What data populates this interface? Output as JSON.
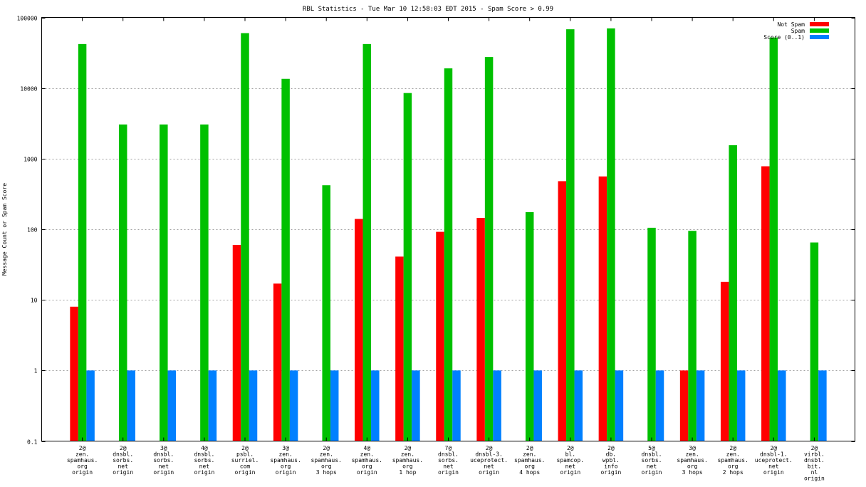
{
  "chart_data": {
    "type": "bar",
    "title": "RBL Statistics - Tue Mar 10 12:58:03 EDT 2015 - Spam Score > 0.99",
    "xlabel": "",
    "ylabel": "Message Count or Spam Score",
    "yscale": "log",
    "ylim": [
      0.1,
      100000
    ],
    "yticks": [
      0.1,
      1,
      10,
      100,
      1000,
      10000,
      100000
    ],
    "ytick_labels": [
      "0.1",
      "1",
      "10",
      "100",
      "1000",
      "10000",
      "100000"
    ],
    "grid": true,
    "legend_position": "top-right",
    "categories": [
      [
        "2@",
        "zen.",
        "spamhaus.",
        "org",
        "origin"
      ],
      [
        "2@",
        "dnsbl.",
        "sorbs.",
        "net",
        "origin"
      ],
      [
        "3@",
        "dnsbl.",
        "sorbs.",
        "net",
        "origin"
      ],
      [
        "4@",
        "dnsbl.",
        "sorbs.",
        "net",
        "origin"
      ],
      [
        "2@",
        "psbl.",
        "surriel.",
        "com",
        "origin"
      ],
      [
        "3@",
        "zen.",
        "spamhaus.",
        "org",
        "origin"
      ],
      [
        "2@",
        "zen.",
        "spamhaus.",
        "org",
        "3 hops"
      ],
      [
        "4@",
        "zen.",
        "spamhaus.",
        "org",
        "origin"
      ],
      [
        "2@",
        "zen.",
        "spamhaus.",
        "org",
        "1 hop"
      ],
      [
        "7@",
        "dnsbl.",
        "sorbs.",
        "net",
        "origin"
      ],
      [
        "2@",
        "dnsbl-3.",
        "uceprotect.",
        "net",
        "origin"
      ],
      [
        "2@",
        "zen.",
        "spamhaus.",
        "org",
        "4 hops"
      ],
      [
        "2@",
        "bl.",
        "spamcop.",
        "net",
        "origin"
      ],
      [
        "2@",
        "db.",
        "wpbl.",
        "info",
        "origin"
      ],
      [
        "5@",
        "dnsbl.",
        "sorbs.",
        "net",
        "origin"
      ],
      [
        "3@",
        "zen.",
        "spamhaus.",
        "org",
        "3 hops"
      ],
      [
        "2@",
        "zen.",
        "spamhaus.",
        "org",
        "2 hops"
      ],
      [
        "2@",
        "dnsbl-1.",
        "uceprotect.",
        "net",
        "origin"
      ],
      [
        "2@",
        "virbl.",
        "dnsbl.",
        "bit.",
        "nl",
        "origin"
      ]
    ],
    "series": [
      {
        "name": "Not Spam",
        "color": "#ff0000",
        "values": [
          8,
          null,
          null,
          null,
          60,
          17,
          null,
          140,
          41,
          92,
          145,
          null,
          480,
          560,
          null,
          1,
          18,
          780,
          null
        ]
      },
      {
        "name": "Spam",
        "color": "#00c000",
        "values": [
          42000,
          3050,
          3050,
          3050,
          60000,
          13500,
          420,
          42000,
          8500,
          19000,
          27500,
          175,
          68000,
          70000,
          105,
          95,
          1550,
          52000,
          65
        ]
      },
      {
        "name": "Score (0..1)",
        "color": "#0080ff",
        "values": [
          1,
          1,
          1,
          1,
          1,
          1,
          1,
          1,
          1,
          1,
          1,
          1,
          1,
          1,
          1,
          1,
          1,
          1,
          1
        ]
      }
    ]
  }
}
